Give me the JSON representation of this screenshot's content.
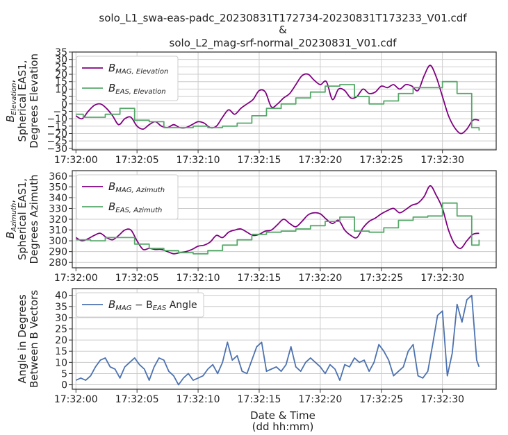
{
  "chart_data": [
    {
      "type": "line",
      "title_lines": [
        "solo_L1_swa-eas-padc_20230831T172734-20230831T173233_V01.cdf",
        "&",
        "solo_L2_mag-srf-normal_20230831_V01.cdf"
      ],
      "ylabel_lines": [
        "B_Elevation,",
        "Spherical EAS1,",
        "Degrees Elevation"
      ],
      "ylim": [
        -31,
        35
      ],
      "yticks": [
        -30,
        -25,
        -20,
        -15,
        -10,
        -5,
        0,
        5,
        10,
        15,
        20,
        25,
        30,
        35
      ],
      "xlim": [
        -0.3,
        34.4
      ],
      "xtick_labels": [
        "17:32:00",
        "17:32:05",
        "17:32:10",
        "17:32:15",
        "17:32:20",
        "17:32:25",
        "17:32:30"
      ],
      "xtick_values": [
        0,
        5,
        10,
        15,
        20,
        25,
        30
      ],
      "legend": "upper-left",
      "grid": true,
      "series": [
        {
          "name": "B_MAG,Elevation",
          "legend_main": "B",
          "legend_sub": "MAG, Elevation",
          "color": "#800080",
          "style": "smooth",
          "x": [
            0,
            0.5,
            1,
            1.5,
            2,
            2.5,
            3,
            3.5,
            4,
            4.5,
            5,
            5.5,
            6,
            6.5,
            7,
            7.5,
            8,
            8.5,
            9,
            9.5,
            10,
            10.5,
            11,
            11.5,
            12,
            12.5,
            13,
            13.5,
            14,
            14.5,
            15,
            15.5,
            16,
            16.5,
            17,
            17.5,
            18,
            18.5,
            19,
            19.5,
            20,
            20.5,
            21,
            21.5,
            22,
            22.5,
            23,
            23.5,
            24,
            24.5,
            25,
            25.5,
            26,
            26.5,
            27,
            27.5,
            28,
            28.5,
            29,
            29.5,
            30,
            30.5,
            31,
            31.5,
            32,
            32.5,
            33
          ],
          "y": [
            -8,
            -10,
            -5,
            -1,
            0,
            -3,
            -8,
            -14,
            -10,
            -9,
            -15,
            -17,
            -14,
            -12,
            -15,
            -16,
            -14,
            -16,
            -16,
            -14,
            -12,
            -13,
            -16,
            -15,
            -9,
            -4,
            -7,
            -3,
            0,
            3,
            9,
            8,
            -2,
            0,
            4,
            7,
            13,
            19,
            20,
            16,
            13,
            15,
            3,
            10,
            9,
            4,
            5,
            10,
            7,
            8,
            12,
            11,
            13,
            10,
            13,
            12,
            9,
            19,
            26,
            18,
            5,
            -8,
            -16,
            -20,
            -17,
            -11,
            -11
          ]
        },
        {
          "name": "B_EAS,Elevation",
          "legend_main": "B",
          "legend_sub": "EAS, Elevation",
          "color": "#55a868",
          "style": "step",
          "x": [
            0,
            0.6,
            1.2,
            2.4,
            3.6,
            4.8,
            6.0,
            7.2,
            8.4,
            9.6,
            10.8,
            12.0,
            13.2,
            14.4,
            15.6,
            16.8,
            18.0,
            19.2,
            20.4,
            21.6,
            22.8,
            24.0,
            25.2,
            26.4,
            27.6,
            28.8,
            30.0,
            31.2,
            32.4,
            33.0
          ],
          "y": [
            -7,
            -9,
            -9,
            -7,
            -3,
            -11,
            -12,
            -16,
            -16,
            -15,
            -16,
            -15,
            -13,
            -8,
            -3,
            0,
            4,
            8,
            12,
            13,
            5,
            0,
            2,
            7,
            11,
            11,
            15,
            7,
            -16,
            -18
          ]
        }
      ]
    },
    {
      "type": "line",
      "ylabel_lines": [
        "B_Azimuth,",
        "Spherical EAS1,",
        "Degrees Azimuth"
      ],
      "ylim": [
        275,
        365
      ],
      "yticks": [
        280,
        290,
        300,
        310,
        320,
        330,
        340,
        350,
        360
      ],
      "xlim": [
        -0.3,
        34.4
      ],
      "xtick_labels": [
        "17:32:00",
        "17:32:05",
        "17:32:10",
        "17:32:15",
        "17:32:20",
        "17:32:25",
        "17:32:30"
      ],
      "xtick_values": [
        0,
        5,
        10,
        15,
        20,
        25,
        30
      ],
      "legend": "upper-left",
      "grid": true,
      "series": [
        {
          "name": "B_MAG,Azimuth",
          "legend_main": "B",
          "legend_sub": "MAG, Azimuth",
          "color": "#800080",
          "style": "smooth",
          "x": [
            0,
            0.5,
            1,
            1.5,
            2,
            2.5,
            3,
            3.5,
            4,
            4.5,
            5,
            5.5,
            6,
            6.5,
            7,
            7.5,
            8,
            8.5,
            9,
            9.5,
            10,
            10.5,
            11,
            11.5,
            12,
            12.5,
            13,
            13.5,
            14,
            14.5,
            15,
            15.5,
            16,
            16.5,
            17,
            17.5,
            18,
            18.5,
            19,
            19.5,
            20,
            20.5,
            21,
            21.5,
            22,
            22.5,
            23,
            23.5,
            24,
            24.5,
            25,
            25.5,
            26,
            26.5,
            27,
            27.5,
            28,
            28.5,
            29,
            29.5,
            30,
            30.5,
            31,
            31.5,
            32,
            32.5,
            33
          ],
          "y": [
            303,
            300,
            302,
            305,
            307,
            303,
            301,
            305,
            310,
            310,
            300,
            292,
            293,
            292,
            292,
            290,
            288,
            289,
            290,
            292,
            295,
            296,
            299,
            305,
            303,
            308,
            310,
            311,
            308,
            305,
            306,
            309,
            310,
            315,
            320,
            316,
            313,
            318,
            324,
            326,
            325,
            320,
            316,
            319,
            310,
            305,
            303,
            312,
            318,
            321,
            325,
            328,
            330,
            326,
            329,
            333,
            335,
            341,
            351,
            342,
            330,
            310,
            297,
            293,
            300,
            306,
            307
          ]
        },
        {
          "name": "B_EAS,Azimuth",
          "legend_main": "B",
          "legend_sub": "EAS, Azimuth",
          "color": "#55a868",
          "style": "step",
          "x": [
            0,
            0.6,
            1.2,
            2.4,
            3.6,
            4.8,
            6.0,
            7.2,
            8.4,
            9.6,
            10.8,
            12.0,
            13.2,
            14.4,
            15.6,
            16.8,
            18.0,
            19.2,
            20.4,
            21.6,
            22.8,
            24.0,
            25.2,
            26.4,
            27.6,
            28.8,
            30.0,
            31.2,
            32.4,
            33.0
          ],
          "y": [
            301,
            301,
            300,
            303,
            303,
            297,
            293,
            291,
            289,
            288,
            291,
            296,
            301,
            306,
            308,
            309,
            311,
            314,
            318,
            322,
            309,
            308,
            312,
            319,
            322,
            323,
            335,
            323,
            296,
            301
          ]
        }
      ]
    },
    {
      "type": "line",
      "ylabel_lines": [
        "Angle in Degrees",
        "Between B Vectors"
      ],
      "xlabel_lines": [
        "Date & Time",
        "(dd hh:mm)"
      ],
      "ylim": [
        -2,
        43
      ],
      "yticks": [
        0,
        5,
        10,
        15,
        20,
        25,
        30,
        35,
        40
      ],
      "xlim": [
        -0.3,
        34.4
      ],
      "xtick_labels": [
        "17:32:00",
        "17:32:05",
        "17:32:10",
        "17:32:15",
        "17:32:20",
        "17:32:25",
        "17:32:30"
      ],
      "xtick_values": [
        0,
        5,
        10,
        15,
        20,
        25,
        30
      ],
      "legend": "upper-left",
      "grid": true,
      "series": [
        {
          "name": "B_MAG - B_EAS Angle",
          "legend_main": "B",
          "legend_sub": "MAG",
          "legend_mid": " − B",
          "legend_sub2": "EAS",
          "legend_tail": " Angle",
          "color": "#4c72b0",
          "style": "linear",
          "x": [
            0,
            0.4,
            0.8,
            1.2,
            1.6,
            2.0,
            2.4,
            2.8,
            3.2,
            3.6,
            4.0,
            4.4,
            4.8,
            5.2,
            5.6,
            6.0,
            6.4,
            6.8,
            7.2,
            7.6,
            8.0,
            8.4,
            8.8,
            9.2,
            9.6,
            10.0,
            10.4,
            10.8,
            11.2,
            11.6,
            12.0,
            12.4,
            12.8,
            13.2,
            13.6,
            14.0,
            14.4,
            14.8,
            15.2,
            15.6,
            16.0,
            16.4,
            16.8,
            17.2,
            17.6,
            18.0,
            18.4,
            18.8,
            19.2,
            19.6,
            20.0,
            20.4,
            20.8,
            21.2,
            21.6,
            22.0,
            22.4,
            22.8,
            23.2,
            23.6,
            24.0,
            24.4,
            24.8,
            25.2,
            25.6,
            26.0,
            26.4,
            26.8,
            27.2,
            27.6,
            28.0,
            28.4,
            28.8,
            29.2,
            29.6,
            30.0,
            30.4,
            30.8,
            31.2,
            31.6,
            32.0,
            32.4,
            32.8,
            33.0
          ],
          "y": [
            2,
            3,
            2,
            4,
            8,
            11,
            12,
            8,
            7,
            3,
            8,
            10,
            12,
            9,
            7,
            2,
            8,
            12,
            11,
            6,
            4,
            0,
            3,
            5,
            2,
            3,
            4,
            7,
            9,
            5,
            10,
            19,
            11,
            13,
            6,
            5,
            11,
            17,
            19,
            6,
            7,
            8,
            6,
            9,
            17,
            8,
            6,
            10,
            12,
            10,
            8,
            5,
            9,
            7,
            2,
            9,
            8,
            12,
            10,
            11,
            6,
            10,
            18,
            15,
            11,
            4,
            6,
            8,
            15,
            18,
            4,
            3,
            6,
            18,
            31,
            33,
            4,
            14,
            36,
            28,
            38,
            40,
            11,
            8
          ]
        }
      ]
    }
  ]
}
